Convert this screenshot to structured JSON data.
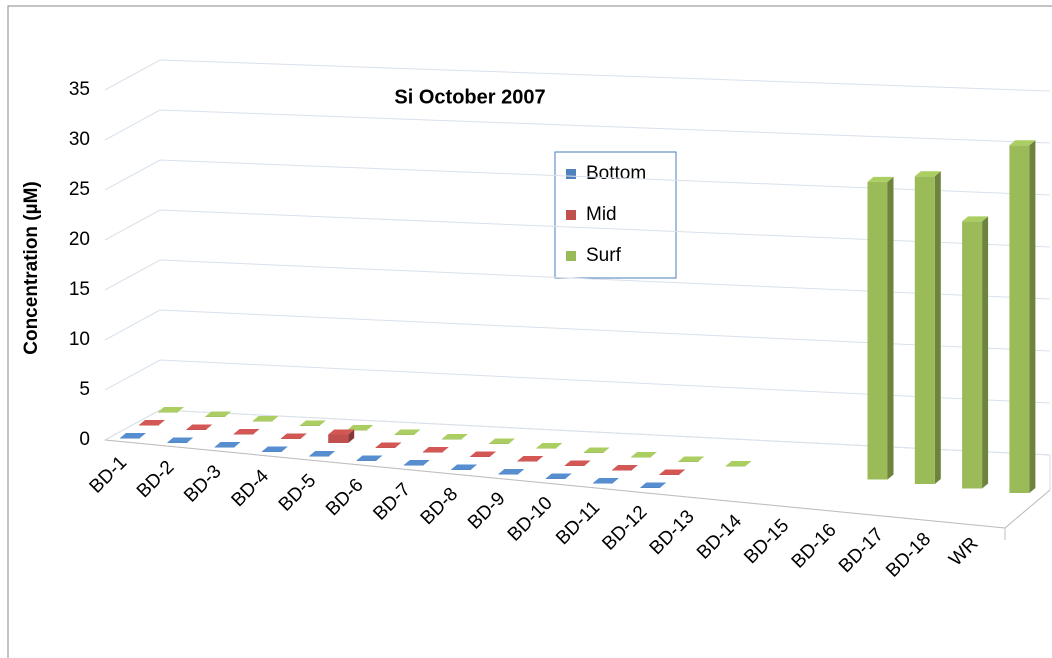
{
  "chart_data": {
    "type": "bar3d",
    "title": "Si  October 2007",
    "y_label": "Concentration (µM)",
    "categories": [
      "BD-1",
      "BD-2",
      "BD-3",
      "BD-4",
      "BD-5",
      "BD-6",
      "BD-7",
      "BD-8",
      "BD-9",
      "BD-10",
      "BD-11",
      "BD-12",
      "BD-13",
      "BD-14",
      "BD-15",
      "BD-16",
      "BD-17",
      "BD-18",
      "WR"
    ],
    "series": [
      {
        "name": "Bottom",
        "color": "#4f81bd",
        "values": [
          0,
          0,
          0,
          0,
          0,
          0,
          0,
          0,
          0,
          0,
          0,
          0,
          null,
          null,
          null,
          null,
          null,
          null,
          null
        ]
      },
      {
        "name": "Mid",
        "color": "#c0504d",
        "values": [
          0,
          0,
          0,
          0,
          0.8,
          0,
          0,
          0,
          0,
          0,
          0,
          0,
          null,
          null,
          null,
          null,
          null,
          null,
          null
        ]
      },
      {
        "name": "Surf",
        "color": "#9bbb59",
        "values": [
          0,
          0,
          0,
          0,
          0,
          0,
          0,
          0,
          0,
          0,
          0,
          0,
          0,
          null,
          null,
          24,
          24.5,
          21,
          27
        ]
      }
    ],
    "ylim": [
      0,
      35
    ],
    "yticks": [
      0,
      5,
      10,
      15,
      20,
      25,
      30,
      35
    ],
    "grid": true
  }
}
